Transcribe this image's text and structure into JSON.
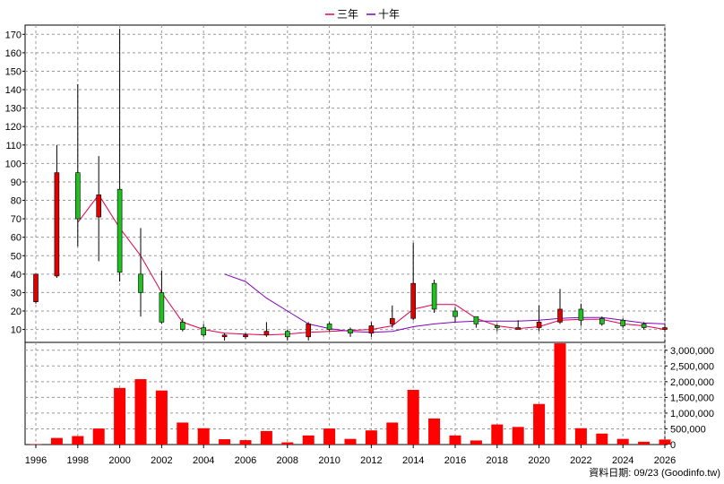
{
  "chart_data": {
    "type": "candlestick+bar",
    "legend": [
      {
        "label": "三年",
        "color": "#e0004d"
      },
      {
        "label": "十年",
        "color": "#8000c0"
      }
    ],
    "colors": {
      "up": "#e00000",
      "down": "#20c020",
      "volume": "#ff0000",
      "grid": "#999999"
    },
    "grid": true,
    "legend_position": "top-center",
    "source_text": "資料日期: 09/23 (Goodinfo.tw)",
    "price_axis": {
      "ylim": [
        3,
        175
      ],
      "ticks": [
        10,
        20,
        30,
        40,
        50,
        60,
        70,
        80,
        90,
        100,
        110,
        120,
        130,
        140,
        150,
        160,
        170
      ],
      "position": "left"
    },
    "volume_axis": {
      "ylim": [
        0,
        3250000
      ],
      "ticks": [
        0,
        500000,
        1000000,
        1500000,
        2000000,
        2500000,
        3000000
      ],
      "tick_labels": [
        "0",
        "500,000",
        "1,000,000",
        "1,500,000",
        "2,000,000",
        "2,500,000",
        "3,000,000"
      ],
      "position": "right"
    },
    "x_axis": {
      "xlim": [
        1996,
        2026.5
      ],
      "ticks": [
        1996,
        1998,
        2000,
        2002,
        2004,
        2006,
        2008,
        2010,
        2012,
        2014,
        2016,
        2018,
        2020,
        2022,
        2024,
        2026
      ]
    },
    "candles": [
      {
        "year": 1996,
        "open": 25,
        "high": 40,
        "low": 24,
        "close": 40
      },
      {
        "year": 1997,
        "open": 39,
        "high": 110,
        "low": 38,
        "close": 95
      },
      {
        "year": 1998,
        "open": 95,
        "high": 143,
        "low": 55,
        "close": 70
      },
      {
        "year": 1999,
        "open": 71,
        "high": 104,
        "low": 47,
        "close": 83
      },
      {
        "year": 2000,
        "open": 86,
        "high": 173,
        "low": 36,
        "close": 41
      },
      {
        "year": 2001,
        "open": 40,
        "high": 65,
        "low": 17,
        "close": 30
      },
      {
        "year": 2002,
        "open": 30,
        "high": 42,
        "low": 13,
        "close": 14
      },
      {
        "year": 2003,
        "open": 14,
        "high": 16,
        "low": 9,
        "close": 10
      },
      {
        "year": 2004,
        "open": 11,
        "high": 13,
        "low": 6,
        "close": 7
      },
      {
        "year": 2005,
        "open": 7,
        "high": 8,
        "low": 4,
        "close": 7
      },
      {
        "year": 2006,
        "open": 7,
        "high": 8,
        "low": 5,
        "close": 7
      },
      {
        "year": 2007,
        "open": 7,
        "high": 14,
        "low": 6,
        "close": 9
      },
      {
        "year": 2008,
        "open": 9,
        "high": 10,
        "low": 4,
        "close": 6
      },
      {
        "year": 2009,
        "open": 6,
        "high": 14,
        "low": 4,
        "close": 13
      },
      {
        "year": 2010,
        "open": 13,
        "high": 14,
        "low": 9,
        "close": 10
      },
      {
        "year": 2011,
        "open": 10,
        "high": 11,
        "low": 6,
        "close": 8
      },
      {
        "year": 2012,
        "open": 8,
        "high": 14,
        "low": 6,
        "close": 12
      },
      {
        "year": 2013,
        "open": 13,
        "high": 23,
        "low": 11,
        "close": 16
      },
      {
        "year": 2014,
        "open": 16,
        "high": 57,
        "low": 15,
        "close": 35
      },
      {
        "year": 2015,
        "open": 35,
        "high": 37,
        "low": 19,
        "close": 21
      },
      {
        "year": 2016,
        "open": 20,
        "high": 22,
        "low": 14,
        "close": 17
      },
      {
        "year": 2017,
        "open": 17,
        "high": 17,
        "low": 11,
        "close": 13
      },
      {
        "year": 2018,
        "open": 12,
        "high": 13,
        "low": 9,
        "close": 11
      },
      {
        "year": 2019,
        "open": 11,
        "high": 15,
        "low": 10,
        "close": 11
      },
      {
        "year": 2020,
        "open": 11,
        "high": 23,
        "low": 9,
        "close": 14
      },
      {
        "year": 2021,
        "open": 14,
        "high": 32,
        "low": 13,
        "close": 21
      },
      {
        "year": 2022,
        "open": 21,
        "high": 24,
        "low": 12,
        "close": 15
      },
      {
        "year": 2023,
        "open": 16,
        "high": 17,
        "low": 12,
        "close": 13
      },
      {
        "year": 2024,
        "open": 15,
        "high": 16,
        "low": 11,
        "close": 12
      },
      {
        "year": 2025,
        "open": 13,
        "high": 14,
        "low": 10,
        "close": 11
      },
      {
        "year": 2026,
        "open": 11,
        "high": 12,
        "low": 10,
        "close": 11
      }
    ],
    "moving_averages": [
      {
        "name": "三年",
        "color": "#e0004d",
        "points": [
          [
            1998,
            68
          ],
          [
            1999,
            83
          ],
          [
            2000,
            65
          ],
          [
            2001,
            50
          ],
          [
            2002,
            30
          ],
          [
            2003,
            14
          ],
          [
            2004,
            10
          ],
          [
            2005,
            8
          ],
          [
            2006,
            7.5
          ],
          [
            2007,
            7
          ],
          [
            2008,
            7.5
          ],
          [
            2009,
            8.5
          ],
          [
            2010,
            9
          ],
          [
            2011,
            9.5
          ],
          [
            2012,
            10
          ],
          [
            2013,
            12
          ],
          [
            2014,
            21
          ],
          [
            2015,
            23.5
          ],
          [
            2016,
            23.5
          ],
          [
            2017,
            16
          ],
          [
            2018,
            12
          ],
          [
            2019,
            10.5
          ],
          [
            2020,
            11.5
          ],
          [
            2021,
            15
          ],
          [
            2022,
            15.5
          ],
          [
            2023,
            15.5
          ],
          [
            2024,
            13
          ],
          [
            2025,
            12
          ],
          [
            2026,
            10
          ]
        ]
      },
      {
        "name": "十年",
        "color": "#8000c0",
        "points": [
          [
            2005,
            40
          ],
          [
            2006,
            36
          ],
          [
            2007,
            27
          ],
          [
            2008,
            20
          ],
          [
            2009,
            13
          ],
          [
            2010,
            10.5
          ],
          [
            2011,
            9
          ],
          [
            2012,
            8.5
          ],
          [
            2013,
            9
          ],
          [
            2014,
            11.5
          ],
          [
            2015,
            13
          ],
          [
            2016,
            14
          ],
          [
            2017,
            14.5
          ],
          [
            2018,
            14.5
          ],
          [
            2019,
            14.5
          ],
          [
            2020,
            15
          ],
          [
            2021,
            16
          ],
          [
            2022,
            16.5
          ],
          [
            2023,
            16.5
          ],
          [
            2024,
            15
          ],
          [
            2025,
            13.5
          ],
          [
            2026,
            13
          ]
        ]
      }
    ],
    "volume": [
      {
        "year": 1996,
        "value": 10000
      },
      {
        "year": 1997,
        "value": 210000
      },
      {
        "year": 1998,
        "value": 270000
      },
      {
        "year": 1999,
        "value": 510000
      },
      {
        "year": 2000,
        "value": 1800000
      },
      {
        "year": 2001,
        "value": 2080000
      },
      {
        "year": 2002,
        "value": 1720000
      },
      {
        "year": 2003,
        "value": 700000
      },
      {
        "year": 2004,
        "value": 520000
      },
      {
        "year": 2005,
        "value": 170000
      },
      {
        "year": 2006,
        "value": 140000
      },
      {
        "year": 2007,
        "value": 430000
      },
      {
        "year": 2008,
        "value": 70000
      },
      {
        "year": 2009,
        "value": 290000
      },
      {
        "year": 2010,
        "value": 510000
      },
      {
        "year": 2011,
        "value": 180000
      },
      {
        "year": 2012,
        "value": 450000
      },
      {
        "year": 2013,
        "value": 700000
      },
      {
        "year": 2014,
        "value": 1740000
      },
      {
        "year": 2015,
        "value": 830000
      },
      {
        "year": 2016,
        "value": 290000
      },
      {
        "year": 2017,
        "value": 130000
      },
      {
        "year": 2018,
        "value": 640000
      },
      {
        "year": 2019,
        "value": 560000
      },
      {
        "year": 2020,
        "value": 1290000
      },
      {
        "year": 2021,
        "value": 3220000
      },
      {
        "year": 2022,
        "value": 520000
      },
      {
        "year": 2023,
        "value": 350000
      },
      {
        "year": 2024,
        "value": 180000
      },
      {
        "year": 2025,
        "value": 90000
      },
      {
        "year": 2026,
        "value": 160000
      }
    ]
  }
}
